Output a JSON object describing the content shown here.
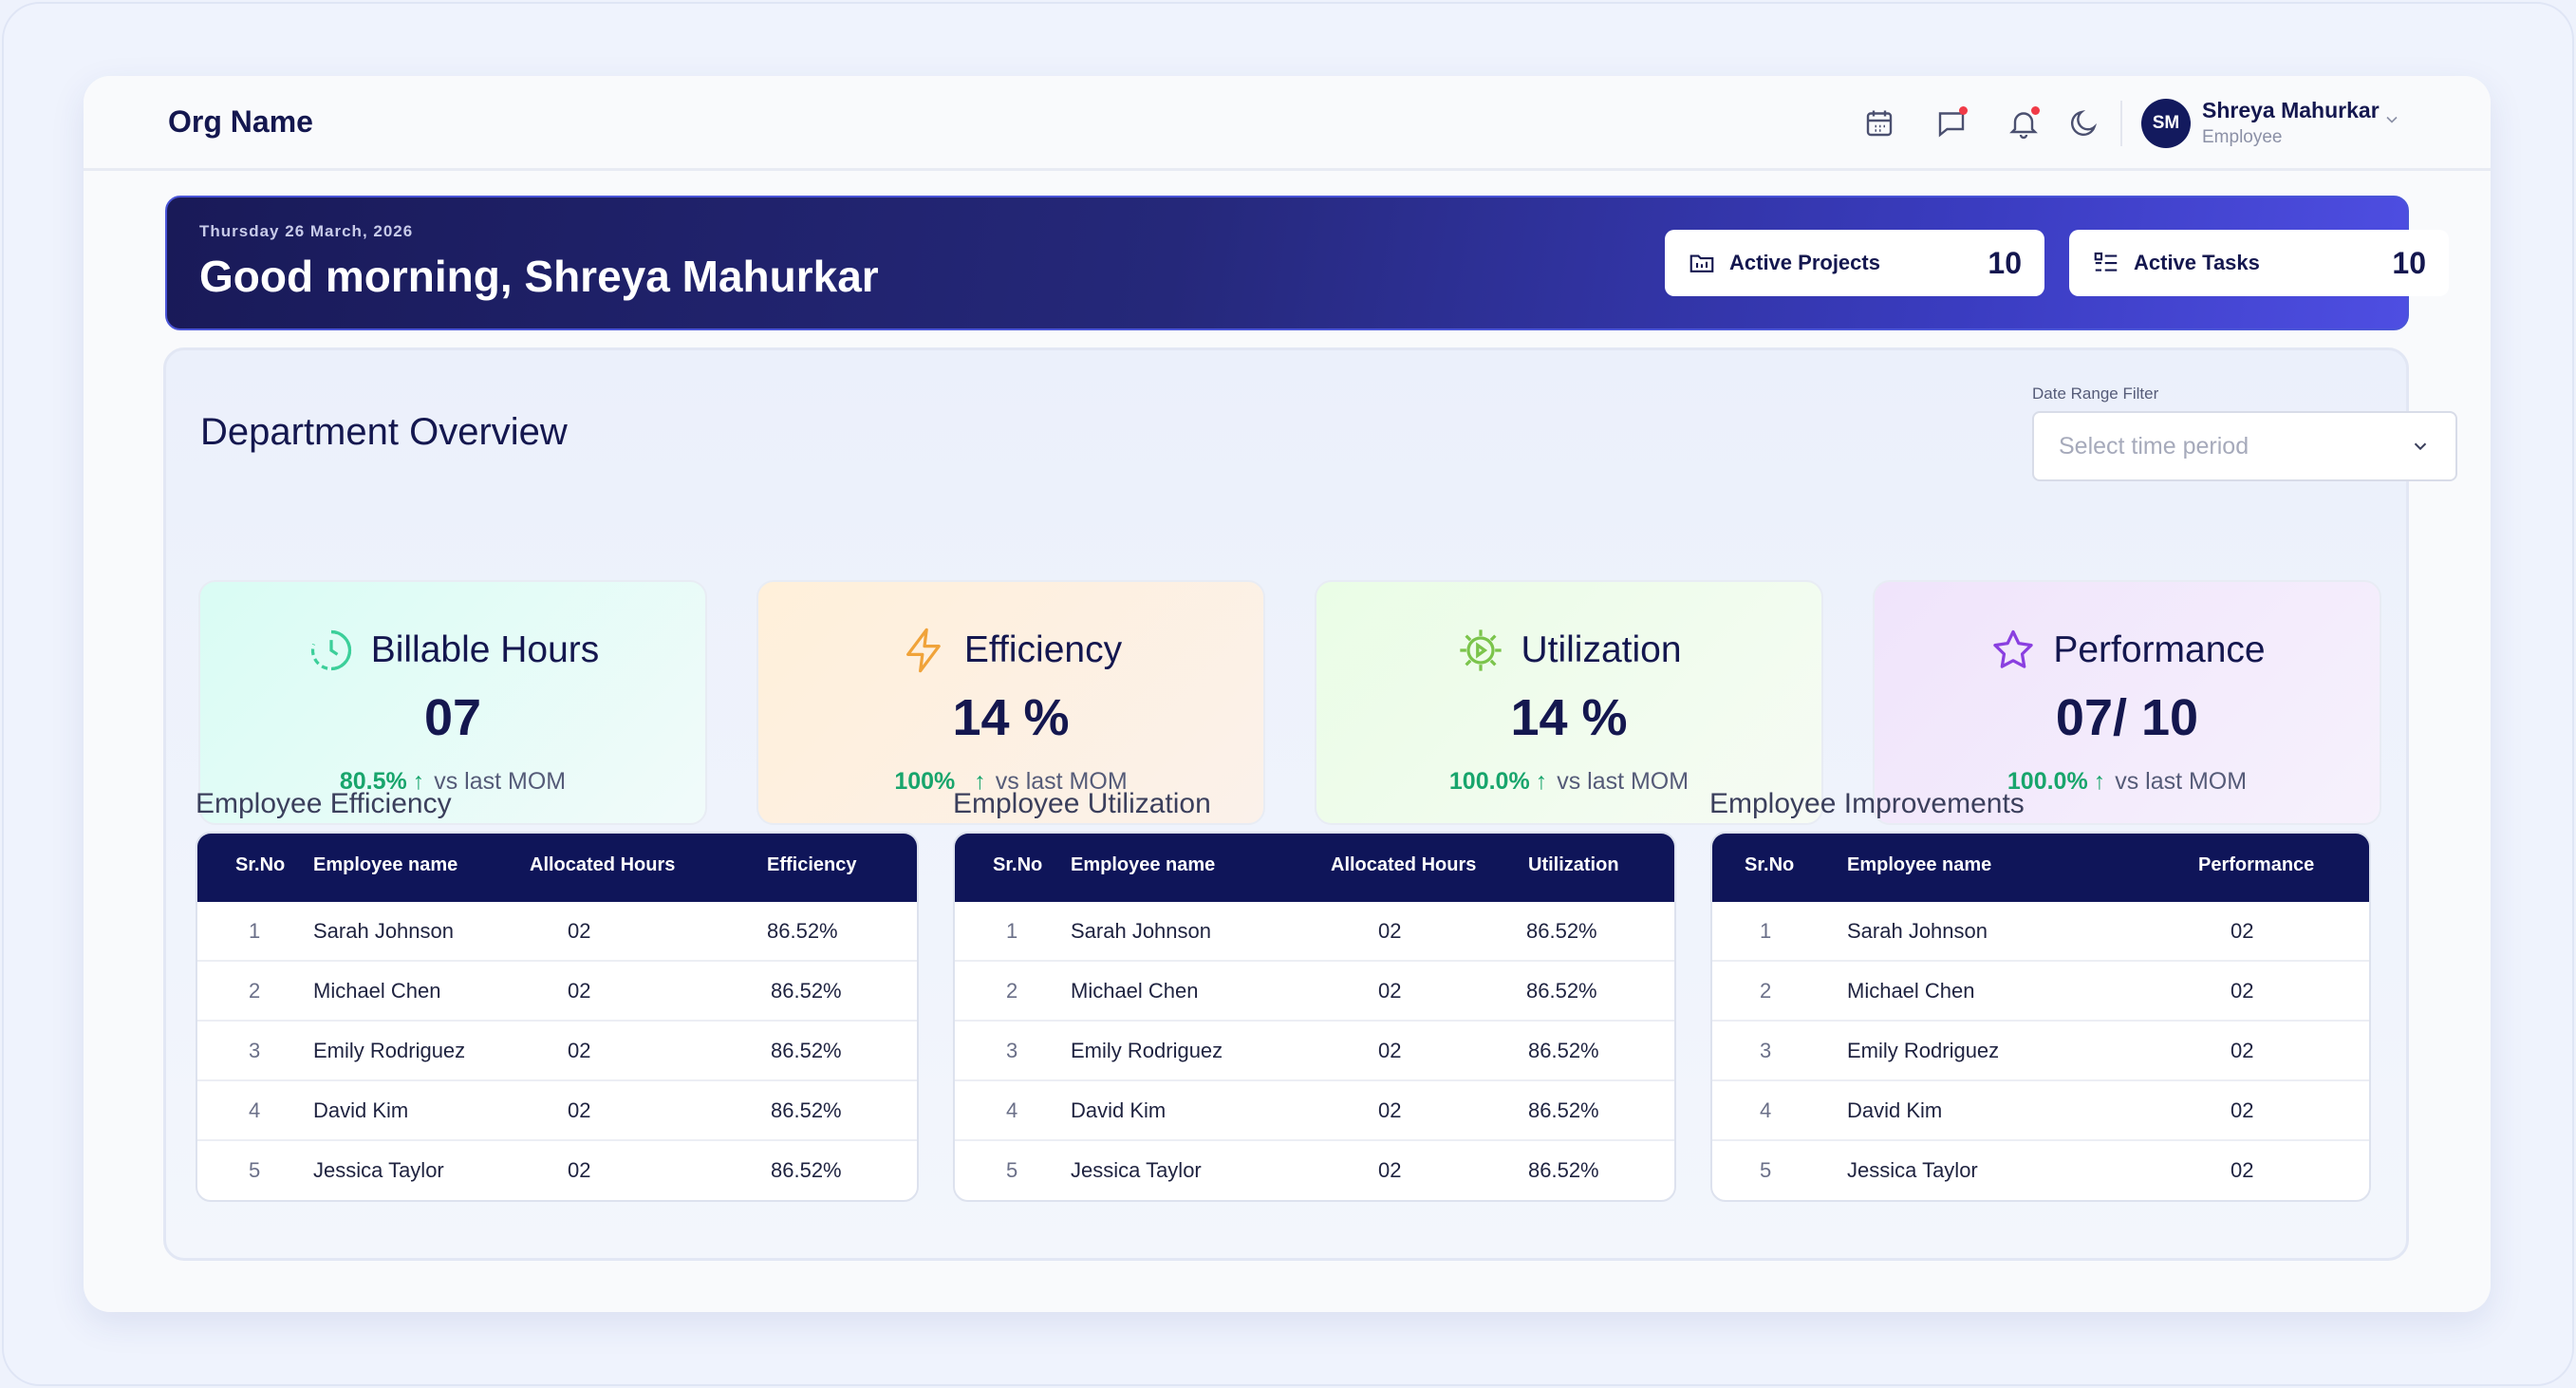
{
  "header": {
    "org_name": "Org Name",
    "user": {
      "initials": "SM",
      "name": "Shreya Mahurkar",
      "role": "Employee"
    },
    "icons": [
      "calendar-icon",
      "chat-icon",
      "bell-icon",
      "moon-icon",
      "chevron-down-icon"
    ]
  },
  "banner": {
    "date": "Thursday 26 March, 2026",
    "greeting": "Good morning, Shreya Mahurkar",
    "stats": [
      {
        "label": "Active Projects",
        "value": "10",
        "icon": "folder-icon"
      },
      {
        "label": "Active Tasks",
        "value": "10",
        "icon": "task-list-icon"
      }
    ]
  },
  "overview": {
    "title": "Department Overview",
    "filter": {
      "label": "Date Range Filter",
      "placeholder": "Select time period"
    },
    "kpis": [
      {
        "title": "Billable Hours",
        "value": "07",
        "change": "80.5%",
        "compare": "vs last MOM",
        "icon": "clock-icon",
        "accent": "#3ccf9a"
      },
      {
        "title": "Efficiency",
        "value": "14 %",
        "change": "100%",
        "compare": "vs last MOM",
        "icon": "lightning-icon",
        "accent": "#f0a33a"
      },
      {
        "title": "Utilization",
        "value": "14 %",
        "change": "100.0%",
        "compare": "vs last MOM",
        "icon": "gear-icon",
        "accent": "#7bc44b"
      },
      {
        "title": "Performance",
        "value": "07/ 10",
        "change": "100.0%",
        "compare": "vs last MOM",
        "icon": "star-icon",
        "accent": "#8a3fe0"
      }
    ]
  },
  "tables": {
    "efficiency": {
      "title": "Employee Efficiency",
      "columns": [
        "Sr.No",
        "Employee name",
        "Allocated Hours",
        "Efficiency"
      ],
      "rows": [
        [
          "1",
          "Sarah Johnson",
          "02",
          "86.52%"
        ],
        [
          "2",
          "Michael Chen",
          "02",
          "86.52%"
        ],
        [
          "3",
          "Emily Rodriguez",
          "02",
          "86.52%"
        ],
        [
          "4",
          "David Kim",
          "02",
          "86.52%"
        ],
        [
          "5",
          "Jessica Taylor",
          "02",
          "86.52%"
        ]
      ]
    },
    "utilization": {
      "title": "Employee Utilization",
      "columns": [
        "Sr.No",
        "Employee name",
        "Allocated Hours",
        "Utilization"
      ],
      "rows": [
        [
          "1",
          "Sarah Johnson",
          "02",
          "86.52%"
        ],
        [
          "2",
          "Michael Chen",
          "02",
          "86.52%"
        ],
        [
          "3",
          "Emily Rodriguez",
          "02",
          "86.52%"
        ],
        [
          "4",
          "David Kim",
          "02",
          "86.52%"
        ],
        [
          "5",
          "Jessica Taylor",
          "02",
          "86.52%"
        ]
      ]
    },
    "improvements": {
      "title": "Employee Improvements",
      "columns": [
        "Sr.No",
        "Employee name",
        "Performance"
      ],
      "rows": [
        [
          "1",
          "Sarah Johnson",
          "02"
        ],
        [
          "2",
          "Michael Chen",
          "02"
        ],
        [
          "3",
          "Emily Rodriguez",
          "02"
        ],
        [
          "4",
          "David Kim",
          "02"
        ],
        [
          "5",
          "Jessica Taylor",
          "02"
        ]
      ]
    }
  }
}
